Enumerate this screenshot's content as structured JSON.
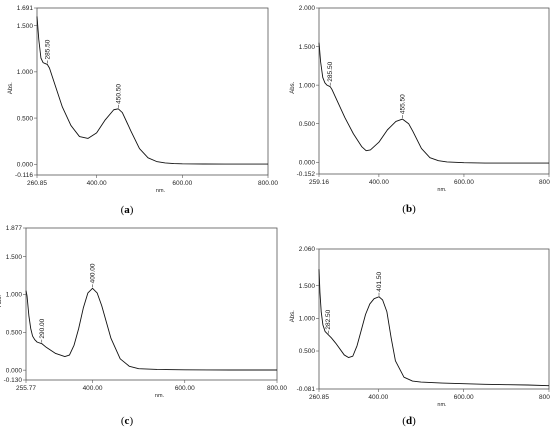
{
  "chart_data": [
    {
      "type": "line",
      "panel_label": "a",
      "xlabel": "nm.",
      "ylabel": "Abs.",
      "xlim": [
        260.85,
        800.0
      ],
      "ylim": [
        -0.116,
        1.691
      ],
      "x_ticks": [
        "260.85",
        "400.00",
        "600.00",
        "800.00"
      ],
      "y_ticks": [
        "-0.116",
        "0.000",
        "0.500",
        "1.000",
        "1.500",
        "1.691"
      ],
      "peaks": [
        {
          "x": 285.5,
          "y": 1.08,
          "label": "285.50"
        },
        {
          "x": 450.5,
          "y": 0.6,
          "label": "450.50"
        }
      ],
      "x": [
        260.85,
        265,
        270,
        275,
        280,
        285,
        290,
        300,
        320,
        340,
        360,
        380,
        400,
        420,
        440,
        450.5,
        460,
        480,
        500,
        520,
        540,
        560,
        580,
        600,
        650,
        700,
        750,
        800
      ],
      "y": [
        1.6,
        1.35,
        1.15,
        1.1,
        1.09,
        1.08,
        1.04,
        0.9,
        0.62,
        0.42,
        0.3,
        0.28,
        0.34,
        0.48,
        0.59,
        0.6,
        0.56,
        0.36,
        0.17,
        0.07,
        0.03,
        0.015,
        0.008,
        0.005,
        0.003,
        0.002,
        0.002,
        0.002
      ]
    },
    {
      "type": "line",
      "panel_label": "b",
      "xlabel": "nm.",
      "ylabel": "Abs.",
      "xlim": [
        259.16,
        800.0
      ],
      "ylim": [
        -0.152,
        2.0
      ],
      "x_ticks": [
        "259.16",
        "400.00",
        "600.00",
        "800.00"
      ],
      "y_ticks": [
        "-0.152",
        "0.000",
        "0.500",
        "1.000",
        "1.500",
        "2.000"
      ],
      "peaks": [
        {
          "x": 285.5,
          "y": 0.98,
          "label": "285.50"
        },
        {
          "x": 455.5,
          "y": 0.56,
          "label": "455.50"
        }
      ],
      "x": [
        259.16,
        263,
        268,
        273,
        278,
        285.5,
        290,
        300,
        320,
        340,
        360,
        370,
        380,
        400,
        420,
        440,
        455.5,
        470,
        480,
        500,
        520,
        540,
        560,
        580,
        600,
        650,
        700,
        750,
        800
      ],
      "y": [
        1.55,
        1.3,
        1.1,
        1.03,
        1.0,
        0.98,
        0.94,
        0.82,
        0.58,
        0.37,
        0.2,
        0.15,
        0.16,
        0.26,
        0.42,
        0.53,
        0.56,
        0.5,
        0.4,
        0.18,
        0.06,
        0.02,
        0.005,
        0.0,
        -0.005,
        -0.01,
        -0.01,
        -0.01,
        -0.01
      ]
    },
    {
      "type": "line",
      "panel_label": "c",
      "xlabel": "nm.",
      "ylabel": "Abs.",
      "xlim": [
        255.77,
        800.0
      ],
      "ylim": [
        -0.13,
        1.877
      ],
      "x_ticks": [
        "255.77",
        "400.00",
        "600.00",
        "800.00"
      ],
      "y_ticks": [
        "-0.130",
        "0.000",
        "0.500",
        "1.000",
        "1.500",
        "1.877"
      ],
      "peaks": [
        {
          "x": 290.0,
          "y": 0.35,
          "label": "290.00"
        },
        {
          "x": 400.0,
          "y": 1.08,
          "label": "400.00"
        }
      ],
      "x": [
        255.77,
        258,
        262,
        266,
        270,
        275,
        280,
        290,
        300,
        320,
        340,
        350,
        360,
        370,
        380,
        390,
        400,
        410,
        420,
        440,
        460,
        480,
        500,
        540,
        600,
        650,
        700,
        750,
        800
      ],
      "y": [
        1.05,
        0.98,
        0.72,
        0.55,
        0.45,
        0.4,
        0.37,
        0.35,
        0.3,
        0.22,
        0.18,
        0.2,
        0.33,
        0.55,
        0.82,
        1.02,
        1.08,
        1.02,
        0.85,
        0.42,
        0.15,
        0.05,
        0.02,
        0.01,
        0.005,
        0.003,
        0.002,
        0.002,
        0.002
      ]
    },
    {
      "type": "line",
      "panel_label": "d",
      "xlabel": "nm.",
      "ylabel": "Abs.",
      "xlim": [
        260.85,
        800.0
      ],
      "ylim": [
        -0.081,
        2.06
      ],
      "x_ticks": [
        "260.85",
        "400.00",
        "600.00",
        "800.00"
      ],
      "y_ticks": [
        "-0.081",
        "0.500",
        "1.000",
        "1.500",
        "2.060"
      ],
      "peaks": [
        {
          "x": 282.5,
          "y": 0.75,
          "label": "282.50"
        },
        {
          "x": 401.5,
          "y": 1.33,
          "label": "401.50"
        }
      ],
      "x": [
        260.85,
        263,
        266,
        270,
        275,
        282.5,
        290,
        300,
        320,
        330,
        340,
        350,
        360,
        370,
        380,
        390,
        401.5,
        410,
        420,
        430,
        440,
        460,
        480,
        500,
        550,
        600,
        650,
        700,
        750,
        800
      ],
      "y": [
        1.75,
        1.4,
        1.1,
        0.9,
        0.8,
        0.75,
        0.7,
        0.62,
        0.44,
        0.4,
        0.42,
        0.58,
        0.82,
        1.06,
        1.22,
        1.3,
        1.33,
        1.28,
        1.1,
        0.7,
        0.35,
        0.1,
        0.04,
        0.025,
        0.01,
        0.0,
        -0.01,
        -0.015,
        -0.02,
        -0.03
      ]
    }
  ]
}
